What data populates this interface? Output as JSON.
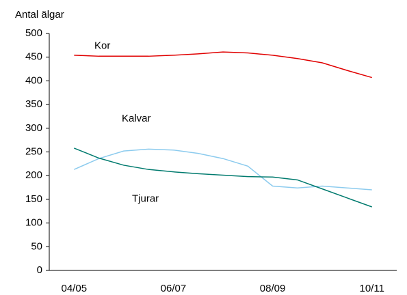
{
  "chart_data": {
    "type": "line",
    "y_label": "Antal älgar",
    "categories": [
      "04/05",
      null,
      null,
      null,
      "06/07",
      null,
      null,
      null,
      "08/09",
      null,
      null,
      null,
      "10/11"
    ],
    "series": [
      {
        "name": "Kor",
        "color": "#e00000",
        "values": [
          454,
          452,
          452,
          452,
          454,
          457,
          461,
          459,
          454,
          447,
          438,
          422,
          407
        ]
      },
      {
        "name": "Kalvar",
        "color": "#8ccbee",
        "values": [
          213,
          236,
          252,
          256,
          254,
          247,
          236,
          220,
          178,
          174,
          178,
          174,
          170
        ]
      },
      {
        "name": "Tjurar",
        "color": "#007a6e",
        "values": [
          258,
          237,
          222,
          213,
          208,
          204,
          201,
          198,
          197,
          191,
          172,
          153,
          134
        ]
      }
    ],
    "ylim": [
      0,
      500
    ],
    "yticks": [
      0,
      50,
      100,
      150,
      200,
      250,
      300,
      350,
      400,
      450,
      500
    ]
  }
}
